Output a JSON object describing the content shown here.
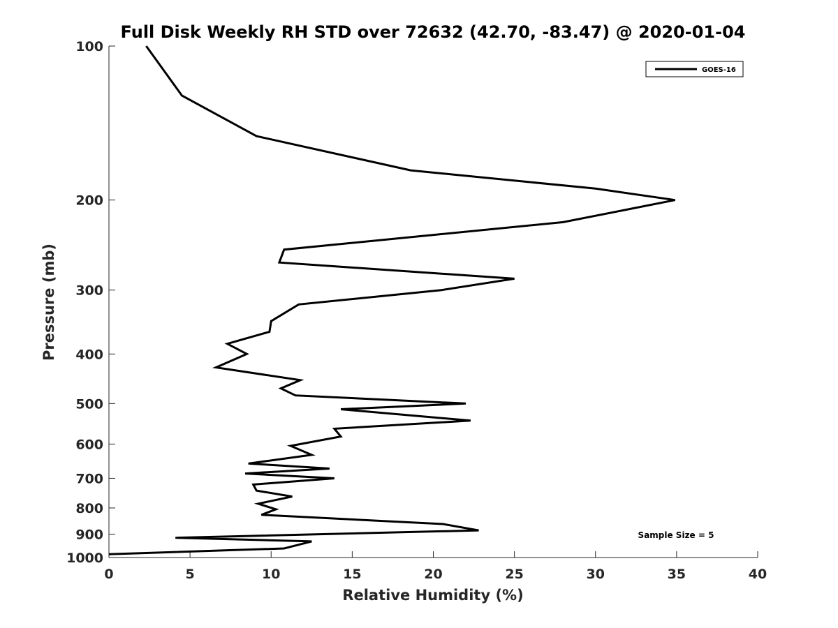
{
  "chart_data": {
    "type": "line",
    "title": "Full Disk Weekly RH STD over 72632 (42.70, -83.47) @ 2020-01-04",
    "xlabel": "Relative Humidity (%)",
    "ylabel": "Pressure (mb)",
    "xlim": [
      0,
      40
    ],
    "ylim": [
      100,
      1000
    ],
    "y_scale": "log",
    "y_reversed": true,
    "x_ticks": [
      0,
      5,
      10,
      15,
      20,
      25,
      30,
      35,
      40
    ],
    "y_ticks": [
      100,
      200,
      300,
      400,
      500,
      600,
      700,
      800,
      900,
      1000
    ],
    "grid": false,
    "legend_position": "top-right",
    "annotation": "Sample Size = 5",
    "series": [
      {
        "name": "GOES-16",
        "color": "#000000",
        "points": [
          [
            2.3,
            100
          ],
          [
            4.5,
            125
          ],
          [
            9.1,
            150
          ],
          [
            18.6,
            175
          ],
          [
            30.0,
            190
          ],
          [
            34.9,
            200
          ],
          [
            28.0,
            221
          ],
          [
            10.8,
            250
          ],
          [
            10.5,
            265
          ],
          [
            25.0,
            285
          ],
          [
            20.5,
            300
          ],
          [
            11.7,
            320
          ],
          [
            10.0,
            345
          ],
          [
            9.9,
            362
          ],
          [
            7.3,
            382
          ],
          [
            8.5,
            400
          ],
          [
            6.6,
            425
          ],
          [
            11.8,
            450
          ],
          [
            10.6,
            467
          ],
          [
            11.5,
            482
          ],
          [
            22.0,
            500
          ],
          [
            14.3,
            513
          ],
          [
            22.3,
            540
          ],
          [
            13.9,
            560
          ],
          [
            14.3,
            580
          ],
          [
            11.2,
            605
          ],
          [
            12.5,
            630
          ],
          [
            8.6,
            655
          ],
          [
            13.6,
            670
          ],
          [
            8.4,
            685
          ],
          [
            13.9,
            700
          ],
          [
            8.9,
            720
          ],
          [
            9.1,
            740
          ],
          [
            11.3,
            760
          ],
          [
            9.2,
            785
          ],
          [
            10.3,
            805
          ],
          [
            9.4,
            825
          ],
          [
            20.6,
            860
          ],
          [
            22.8,
            885
          ],
          [
            4.1,
            915
          ],
          [
            12.5,
            930
          ],
          [
            10.8,
            960
          ],
          [
            0.0,
            985
          ]
        ]
      }
    ]
  }
}
